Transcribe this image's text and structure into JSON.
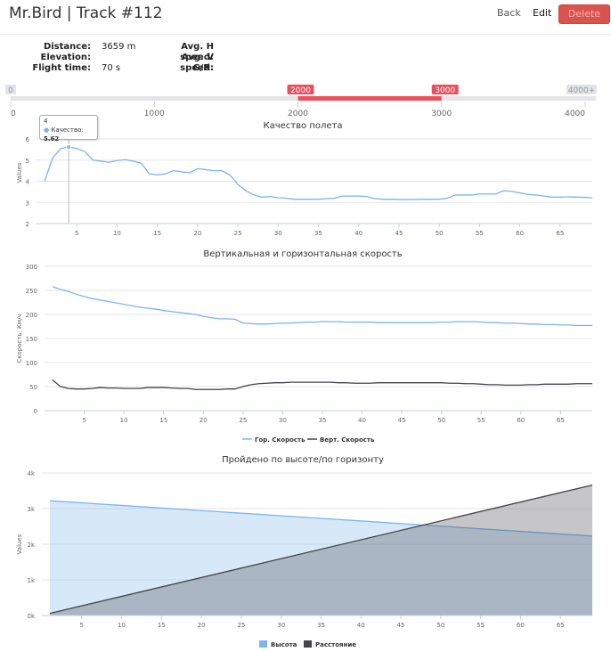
{
  "header": {
    "brand": "Mr.Bird",
    "separator": "|",
    "track": "Track #112",
    "back_label": "Back",
    "edit_label": "Edit",
    "delete_label": "Delete"
  },
  "stats": {
    "distance_label": "Distance:",
    "distance_value": "3659 m",
    "elevation_label": "Elevation:",
    "elevation_value": "",
    "flight_time_label": "Flight time:",
    "flight_time_value": "70 s",
    "avg_h_label": "Avg. H speed:",
    "avg_h_value": "",
    "avg_v_label": "Avg. V speed:",
    "avg_v_value": "",
    "gr_label": "G/R:",
    "gr_value": ""
  },
  "range_slider": {
    "min": 0,
    "max": 4000,
    "from": 2000,
    "to": 3000,
    "min_label": "0",
    "max_label": "4000+",
    "from_label": "2000",
    "to_label": "3000",
    "grid_labels": [
      "0",
      "1000",
      "2000",
      "3000",
      "4000"
    ],
    "accent": "#e8505b"
  },
  "tooltip": {
    "x_label": "4",
    "series_label": "Качество:",
    "value_label": "5.62"
  },
  "chart_data": [
    {
      "type": "line",
      "title": "Качество полета",
      "ylabel": "Values",
      "xlim": [
        0,
        69
      ],
      "ylim": [
        2,
        6
      ],
      "xticks": [
        "5",
        "10",
        "15",
        "20",
        "25",
        "30",
        "35",
        "40",
        "45",
        "50",
        "55",
        "60",
        "65"
      ],
      "yticks": [
        "2",
        "3",
        "4",
        "5",
        "6"
      ],
      "color": "#7cb5ec",
      "series": [
        {
          "x": [
            1,
            2,
            3,
            4,
            5,
            6,
            7,
            8,
            9,
            10,
            11,
            12,
            13,
            14,
            15,
            16,
            17,
            18,
            19,
            20,
            21,
            22,
            23,
            24,
            25,
            26,
            27,
            28,
            29,
            30,
            31,
            32,
            33,
            34,
            35,
            36,
            37,
            38,
            39,
            40,
            41,
            42,
            43,
            44,
            45,
            46,
            47,
            48,
            49,
            50,
            51,
            52,
            53,
            54,
            55,
            56,
            57,
            58,
            59,
            60,
            61,
            62,
            63,
            64,
            65,
            66,
            67,
            68,
            69
          ],
          "values": [
            4.0,
            5.1,
            5.55,
            5.62,
            5.55,
            5.4,
            5.0,
            4.95,
            4.9,
            4.98,
            5.02,
            4.95,
            4.85,
            4.35,
            4.3,
            4.35,
            4.5,
            4.45,
            4.4,
            4.6,
            4.55,
            4.5,
            4.5,
            4.3,
            3.85,
            3.55,
            3.35,
            3.25,
            3.28,
            3.22,
            3.2,
            3.15,
            3.15,
            3.15,
            3.15,
            3.18,
            3.2,
            3.3,
            3.3,
            3.3,
            3.28,
            3.18,
            3.15,
            3.15,
            3.14,
            3.14,
            3.14,
            3.15,
            3.15,
            3.15,
            3.2,
            3.35,
            3.35,
            3.35,
            3.4,
            3.4,
            3.4,
            3.55,
            3.52,
            3.45,
            3.38,
            3.35,
            3.3,
            3.25,
            3.25,
            3.26,
            3.25,
            3.24,
            3.22
          ]
        }
      ]
    },
    {
      "type": "line",
      "title": "Вертикальная и горизонтальная скорость",
      "ylabel": "Скорость, Км/ч",
      "xlim": [
        0,
        69
      ],
      "ylim": [
        0,
        300
      ],
      "xticks": [
        "5",
        "10",
        "15",
        "20",
        "25",
        "30",
        "35",
        "40",
        "45",
        "50",
        "55",
        "60",
        "65"
      ],
      "yticks": [
        "0",
        "50",
        "100",
        "150",
        "200",
        "250",
        "300"
      ],
      "legend": "bottom",
      "series": [
        {
          "name": "Гор. Скорость",
          "color": "#7cb5ec",
          "x": [
            1,
            2,
            3,
            4,
            5,
            6,
            7,
            8,
            9,
            10,
            11,
            12,
            13,
            14,
            15,
            16,
            17,
            18,
            19,
            20,
            21,
            22,
            23,
            24,
            25,
            26,
            27,
            28,
            29,
            30,
            31,
            32,
            33,
            34,
            35,
            36,
            37,
            38,
            39,
            40,
            41,
            42,
            43,
            44,
            45,
            46,
            47,
            48,
            49,
            50,
            51,
            52,
            53,
            54,
            55,
            56,
            57,
            58,
            59,
            60,
            61,
            62,
            63,
            64,
            65,
            66,
            67,
            68,
            69
          ],
          "values": [
            258,
            252,
            248,
            242,
            237,
            233,
            230,
            227,
            224,
            221,
            218,
            215,
            213,
            211,
            208,
            206,
            204,
            202,
            200,
            196,
            193,
            191,
            191,
            190,
            182,
            181,
            180,
            180,
            181,
            182,
            182,
            183,
            184,
            184,
            185,
            185,
            185,
            184,
            184,
            184,
            184,
            183,
            183,
            183,
            183,
            183,
            183,
            183,
            183,
            184,
            184,
            185,
            185,
            185,
            184,
            183,
            183,
            182,
            182,
            181,
            180,
            180,
            179,
            179,
            178,
            178,
            177,
            177,
            177
          ],
          "legend_label": "Гор. Скорость"
        },
        {
          "name": "Верт. Скорость",
          "color": "#434348",
          "x": [
            1,
            2,
            3,
            4,
            5,
            6,
            7,
            8,
            9,
            10,
            11,
            12,
            13,
            14,
            15,
            16,
            17,
            18,
            19,
            20,
            21,
            22,
            23,
            24,
            25,
            26,
            27,
            28,
            29,
            30,
            31,
            32,
            33,
            34,
            35,
            36,
            37,
            38,
            39,
            40,
            41,
            42,
            43,
            44,
            45,
            46,
            47,
            48,
            49,
            50,
            51,
            52,
            53,
            54,
            55,
            56,
            57,
            58,
            59,
            60,
            61,
            62,
            63,
            64,
            65,
            66,
            67,
            68,
            69
          ],
          "values": [
            64,
            50,
            46,
            45,
            45,
            46,
            48,
            47,
            47,
            46,
            46,
            46,
            48,
            48,
            48,
            47,
            46,
            46,
            44,
            44,
            44,
            44,
            45,
            45,
            50,
            54,
            56,
            57,
            58,
            58,
            59,
            59,
            59,
            59,
            59,
            59,
            58,
            58,
            57,
            57,
            57,
            58,
            58,
            58,
            58,
            58,
            58,
            58,
            58,
            58,
            57,
            57,
            56,
            56,
            55,
            54,
            54,
            53,
            53,
            53,
            54,
            54,
            55,
            55,
            55,
            55,
            56,
            56,
            56
          ],
          "legend_label": "Верт. Скорость"
        }
      ]
    },
    {
      "type": "area",
      "title": "Пройдено по высоте/по горизонту",
      "ylabel": "Values",
      "xlim": [
        0,
        69
      ],
      "ylim": [
        0,
        4000
      ],
      "xticks": [
        "5",
        "10",
        "15",
        "20",
        "25",
        "30",
        "35",
        "40",
        "45",
        "50",
        "55",
        "60",
        "65"
      ],
      "yticks": [
        "0k",
        "1k",
        "2k",
        "3k",
        "4k"
      ],
      "legend": "bottom",
      "series": [
        {
          "name": "Высота",
          "color": "#7cb5ec",
          "x": [
            1,
            69
          ],
          "values": [
            3220,
            2230
          ],
          "legend_label": "Высота"
        },
        {
          "name": "Расстояние",
          "color": "#434348",
          "x": [
            1,
            69
          ],
          "values": [
            60,
            3660
          ],
          "legend_label": "Расстояние"
        }
      ]
    }
  ]
}
